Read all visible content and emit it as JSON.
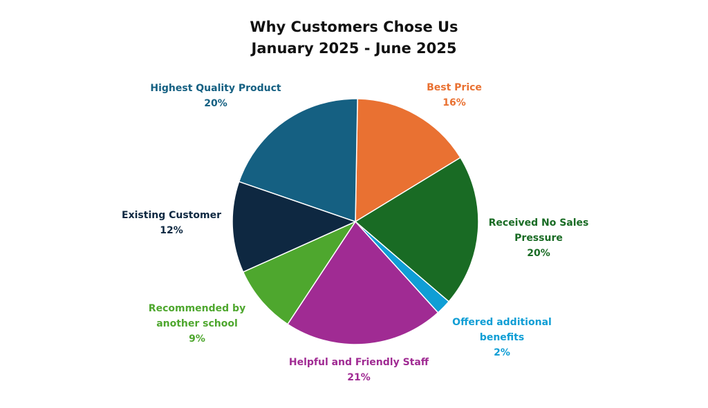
{
  "chart_data": {
    "type": "pie",
    "title": "Why Customers Chose Us",
    "subtitle": "January 2025 - June 2025",
    "start_angle_deg": 1,
    "direction": "clockwise",
    "legend": "none",
    "slices": [
      {
        "label": "Best Price",
        "value": 16,
        "value_label": "16%",
        "color": "#E97132"
      },
      {
        "label": "Received No Sales Pressure",
        "label_lines": [
          "Received No Sales",
          "Pressure"
        ],
        "value": 20,
        "value_label": "20%",
        "color": "#196B24"
      },
      {
        "label": "Offered additional benefits",
        "label_lines": [
          "Offered additional",
          "benefits"
        ],
        "value": 2,
        "value_label": "2%",
        "color": "#0F9ED5"
      },
      {
        "label": "Helpful and Friendly Staff",
        "value": 21,
        "value_label": "21%",
        "color": "#A02B93"
      },
      {
        "label": "Recommended by another school",
        "label_lines": [
          "Recommended by",
          "another school"
        ],
        "value": 9,
        "value_label": "9%",
        "color": "#4EA72E"
      },
      {
        "label": "Existing Customer",
        "value": 12,
        "value_label": "12%",
        "color": "#0E2841"
      },
      {
        "label": "Highest Quality Product",
        "value": 20,
        "value_label": "20%",
        "color": "#156082"
      }
    ]
  }
}
